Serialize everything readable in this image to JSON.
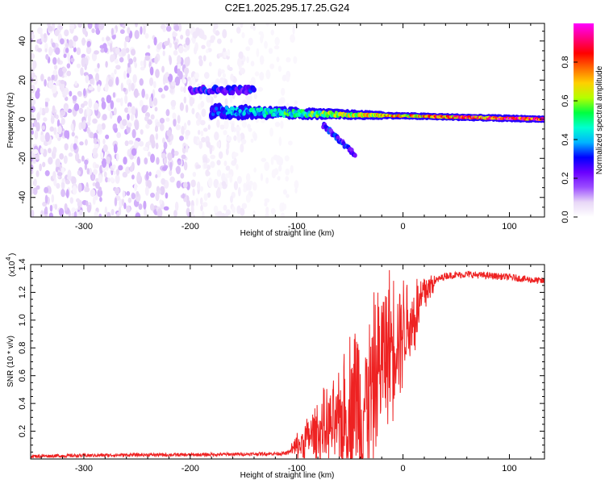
{
  "title": "C2E1.2025.295.17.25.G24",
  "chart_data": [
    {
      "type": "heatmap",
      "xlabel": "Height of straight line (km)",
      "ylabel": "Frequency (Hz)",
      "xlim": [
        -350,
        133
      ],
      "ylim": [
        -50,
        49
      ],
      "xticks": [
        -300,
        -200,
        -100,
        0,
        100
      ],
      "yticks": [
        -40,
        -20,
        0,
        20,
        40
      ],
      "colorbar": {
        "label": "Normalized spectral amplitude",
        "range": [
          0,
          1
        ],
        "ticks": [
          "0.0",
          "0.2",
          "0.4",
          "0.6",
          "0.8"
        ],
        "colormap": [
          "#ffffff",
          "#e8d7f7",
          "#9b4dff",
          "#6a00ff",
          "#0000ff",
          "#00b4ff",
          "#00ffd0",
          "#00ff40",
          "#b4ff00",
          "#ffd000",
          "#ff6a00",
          "#ff0000",
          "#ff0080",
          "#ff00ff"
        ]
      },
      "features": [
        {
          "name": "noise band",
          "x": [
            -350,
            -120
          ],
          "freq": [
            -50,
            49
          ],
          "amplitude": 0.1
        },
        {
          "name": "upper trace",
          "x": [
            -200,
            -140
          ],
          "freq": 15,
          "amplitude": 0.3
        },
        {
          "name": "main trace",
          "x": [
            -180,
            133
          ],
          "freq": [
            4,
            0
          ],
          "amplitude": [
            0.3,
            0.95
          ]
        },
        {
          "name": "lower branch",
          "x": [
            -75,
            -45
          ],
          "freq": [
            -3,
            -18
          ],
          "amplitude": 0.3
        }
      ],
      "grid": false
    },
    {
      "type": "line",
      "xlabel": "Height of straight line (km)",
      "ylabel": "SNR (10 * v/v)",
      "y_multiplier": "(x10",
      "y_multiplier_exp": "4",
      "xlim": [
        -350,
        133
      ],
      "ylim": [
        0,
        1.4
      ],
      "xticks": [
        -300,
        -200,
        -100,
        0,
        100
      ],
      "yticks": [
        0.2,
        0.4,
        0.6,
        0.8,
        1.0,
        1.2,
        1.4
      ],
      "color": "#ee2222",
      "grid": false,
      "series": [
        {
          "x": [
            -350,
            -300,
            -250,
            -200,
            -150,
            -110,
            -100,
            -90,
            -80,
            -70,
            -60,
            -50,
            -45,
            -40,
            -30,
            -20,
            -10,
            0,
            10,
            20,
            30,
            40,
            60,
            80,
            100,
            120,
            133
          ],
          "y": [
            0.02,
            0.025,
            0.03,
            0.03,
            0.035,
            0.04,
            0.08,
            0.15,
            0.2,
            0.22,
            0.25,
            0.3,
            0.5,
            0.35,
            0.45,
            0.75,
            0.85,
            0.95,
            1.0,
            1.2,
            1.28,
            1.32,
            1.33,
            1.32,
            1.31,
            1.29,
            1.28
          ]
        }
      ]
    }
  ]
}
